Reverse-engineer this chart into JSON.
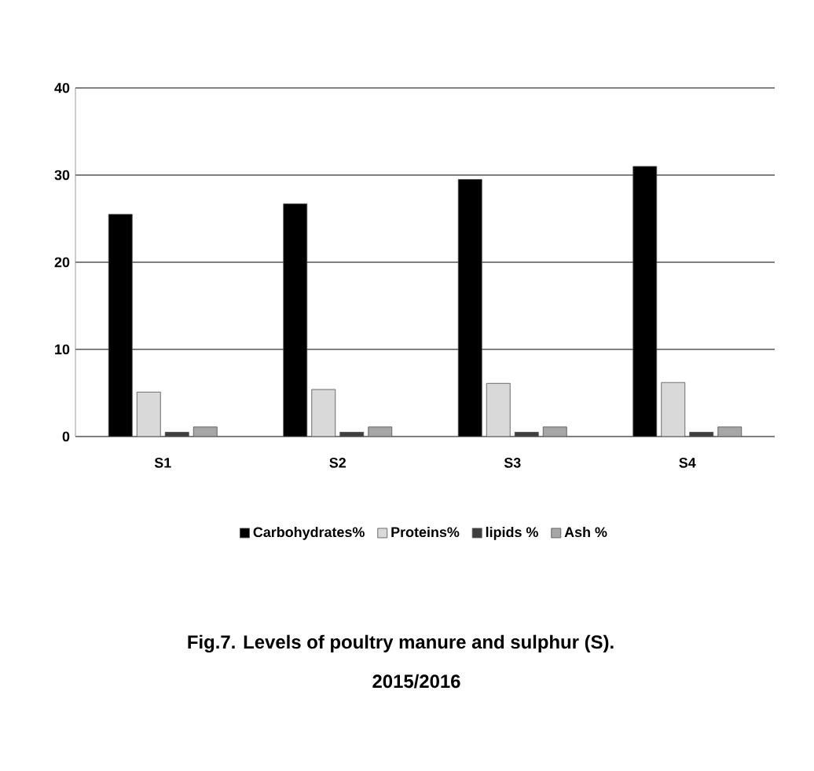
{
  "chart_data": {
    "type": "bar",
    "title": "Fig.7. Levels of  poultry manure and sulphur (S).",
    "subtitle": "2015/2016",
    "categories": [
      "S1",
      "S2",
      "S3",
      "S4"
    ],
    "series": [
      {
        "name": "Carbohydrates%",
        "color": "#000000",
        "values": [
          25.5,
          26.7,
          29.5,
          31.0
        ]
      },
      {
        "name": "Proteins%",
        "color": "#d9d9d9",
        "values": [
          5.1,
          5.4,
          6.1,
          6.2
        ]
      },
      {
        "name": "lipids %",
        "color": "#3f3f3f",
        "values": [
          0.5,
          0.5,
          0.5,
          0.5
        ]
      },
      {
        "name": "Ash %",
        "color": "#a6a6a6",
        "values": [
          1.1,
          1.1,
          1.1,
          1.1
        ]
      }
    ],
    "ylim": [
      0,
      40
    ],
    "yticks": [
      0,
      10,
      20,
      30,
      40
    ],
    "grid": "y",
    "legend": "bottom"
  }
}
